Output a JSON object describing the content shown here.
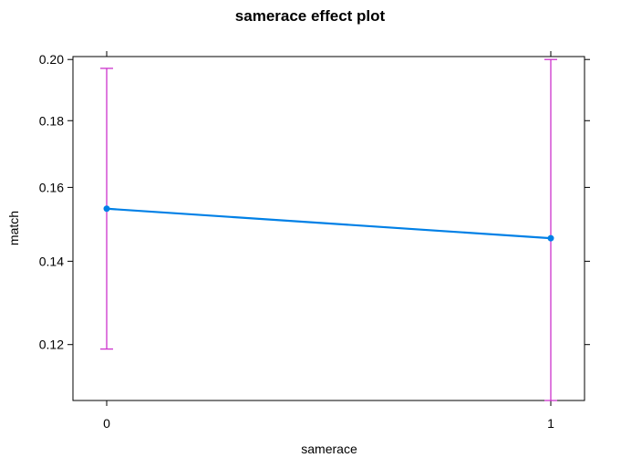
{
  "chart_data": {
    "type": "line",
    "title": "samerace effect plot",
    "xlabel": "samerace",
    "ylabel": "match",
    "x_scale": "categorical",
    "y_scale": "logit",
    "categories": [
      "0",
      "1"
    ],
    "series": [
      {
        "values": [
          0.154,
          0.146
        ],
        "lower": [
          0.119,
          0.108
        ],
        "upper": [
          0.197,
          0.2
        ]
      }
    ],
    "y_ticks": [
      "0.12",
      "0.14",
      "0.16",
      "0.18",
      "0.20"
    ],
    "y_tick_values": [
      0.12,
      0.14,
      0.16,
      0.18,
      0.2
    ],
    "ylim": [
      0.108,
      0.201
    ],
    "grid": false,
    "legend": "none",
    "colors": {
      "line": "#0080e6",
      "error_bar": "#cc33cc",
      "axes": "#000000"
    }
  }
}
